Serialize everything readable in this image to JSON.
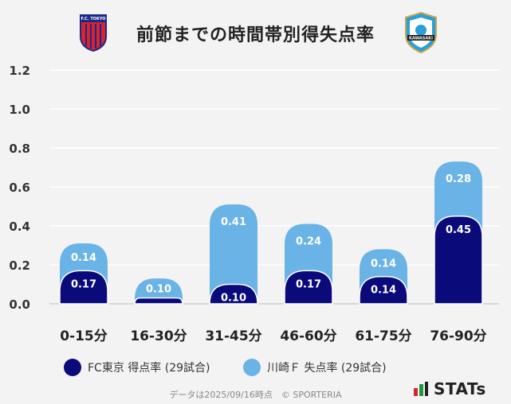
{
  "title": "前節までの時間帯別得失点率",
  "home_logo": {
    "text": "F.C. TOKYO",
    "icon": "fc-tokyo-crest-icon",
    "color_primary": "#1a2a8a",
    "color_secondary": "#d9232e"
  },
  "away_logo": {
    "text": "KAWASAKI",
    "icon": "kawasaki-frontale-crest-icon",
    "color_primary": "#2a9fd8",
    "color_secondary": "#c9a44a"
  },
  "legend": {
    "home": {
      "label": "FC東京 得点率 (29試合)",
      "color": "#0a0a7a"
    },
    "away": {
      "label": "川崎Ｆ 失点率 (29試合)",
      "color": "#6ab3e6"
    }
  },
  "footer": "データは2025/09/16時点　© SPORTERIA",
  "brand": "STATs",
  "chart_data": {
    "type": "bar",
    "title": "前節までの時間帯別得失点率",
    "categories": [
      "0-15分",
      "16-30分",
      "31-45分",
      "46-60分",
      "61-75分",
      "76-90分"
    ],
    "series": [
      {
        "name": "FC東京 得点率 (29試合)",
        "values": [
          0.17,
          0.03,
          0.1,
          0.17,
          0.14,
          0.45
        ],
        "labels": [
          "0.17",
          "",
          "0.10",
          "0.17",
          "0.14",
          "0.45"
        ],
        "color": "#0a0a7a"
      },
      {
        "name": "川崎Ｆ 失点率 (29試合)",
        "values": [
          0.14,
          0.1,
          0.41,
          0.24,
          0.14,
          0.28
        ],
        "labels": [
          "0.14",
          "0.10",
          "0.41",
          "0.24",
          "0.14",
          "0.28"
        ],
        "color": "#6ab3e6"
      }
    ],
    "stacked": true,
    "ylim": [
      0,
      1.2
    ],
    "yticks": [
      "0.0",
      "0.2",
      "0.4",
      "0.6",
      "0.8",
      "1.0",
      "1.2"
    ],
    "ytick_values": [
      0,
      0.2,
      0.4,
      0.6,
      0.8,
      1.0,
      1.2
    ],
    "grid": true,
    "xlabel": "",
    "ylabel": ""
  }
}
